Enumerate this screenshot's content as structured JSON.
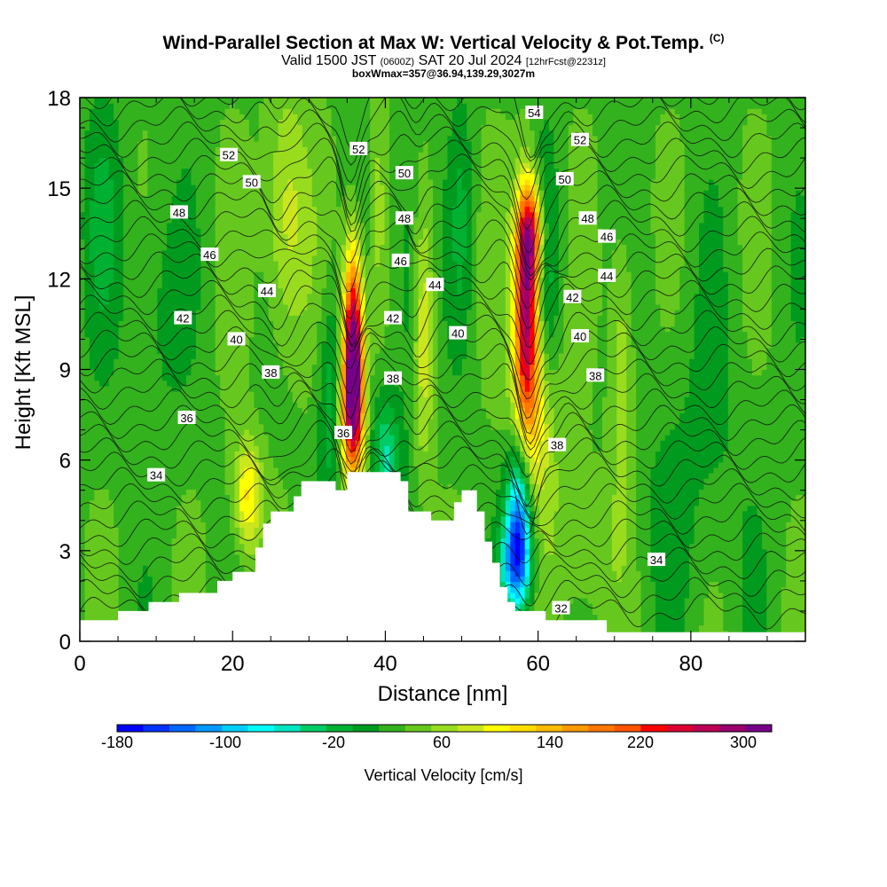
{
  "header": {
    "title": "Wind-Parallel Section at Max W: Vertical Velocity & Pot.Temp.",
    "copyright": "(C)",
    "valid_prefix": "Valid 1500 JST",
    "valid_utc": "(0600Z)",
    "valid_date": "SAT 20 Jul 2024",
    "forecast": "[12hrFcst@2231z]",
    "box_info": "boxWmax=357@36.94,139.29,3027m"
  },
  "chart_data": {
    "type": "heatmap",
    "xlabel": "Distance [nm]",
    "ylabel": "Height [Kft MSL]",
    "xlim": [
      0,
      95
    ],
    "ylim": [
      0,
      18
    ],
    "x_ticks": [
      "0",
      "20",
      "40",
      "60",
      "80"
    ],
    "y_ticks": [
      "0",
      "3",
      "6",
      "9",
      "12",
      "15",
      "18"
    ],
    "colorbar": {
      "title": "Vertical Velocity [cm/s]",
      "labels": [
        "-180",
        "-100",
        "-20",
        "60",
        "140",
        "220",
        "300"
      ],
      "colors": [
        "#0000ff",
        "#0033ff",
        "#0066ff",
        "#0099ff",
        "#00ccff",
        "#00ffff",
        "#00e6c0",
        "#00cc66",
        "#00b030",
        "#009b1e",
        "#33b21e",
        "#66c81e",
        "#99dc1e",
        "#cce61e",
        "#ffff00",
        "#ffdd00",
        "#ffbb00",
        "#ff9900",
        "#ff7700",
        "#ff5500",
        "#ff0000",
        "#dd0033",
        "#bb0055",
        "#99006e",
        "#770088"
      ]
    },
    "background_color": "#3cba1a",
    "terrain": [
      [
        0,
        0.7
      ],
      [
        2,
        0.7
      ],
      [
        4,
        0.7
      ],
      [
        5,
        1.0
      ],
      [
        8,
        1.0
      ],
      [
        9,
        1.3
      ],
      [
        12,
        1.3
      ],
      [
        13,
        1.6
      ],
      [
        17,
        1.6
      ],
      [
        18,
        2.0
      ],
      [
        19,
        2.0
      ],
      [
        20,
        2.3
      ],
      [
        22,
        2.3
      ],
      [
        23,
        3.1
      ],
      [
        24,
        3.9
      ],
      [
        25,
        4.3
      ],
      [
        27,
        4.3
      ],
      [
        28,
        4.8
      ],
      [
        29,
        5.3
      ],
      [
        33,
        5.3
      ],
      [
        33.5,
        5.0
      ],
      [
        34,
        5.0
      ],
      [
        35,
        5.6
      ],
      [
        41,
        5.6
      ],
      [
        42,
        5.3
      ],
      [
        43,
        4.3
      ],
      [
        45,
        4.3
      ],
      [
        46,
        4.0
      ],
      [
        48,
        4.0
      ],
      [
        49,
        4.6
      ],
      [
        50,
        5.0
      ],
      [
        51,
        5.0
      ],
      [
        52,
        4.3
      ],
      [
        53,
        3.3
      ],
      [
        54,
        2.6
      ],
      [
        55,
        1.8
      ],
      [
        56,
        1.3
      ],
      [
        57,
        1.0
      ],
      [
        60,
        1.0
      ],
      [
        61,
        0.7
      ],
      [
        68,
        0.7
      ],
      [
        69,
        0.3
      ],
      [
        95,
        0.3
      ]
    ],
    "velocity_features": [
      {
        "x": 35.8,
        "y": 9.5,
        "sx": 0.9,
        "sy": 2.3,
        "value": 300
      },
      {
        "x": 35.5,
        "y": 7.5,
        "sx": 1.3,
        "sy": 1.5,
        "value": 110
      },
      {
        "x": 58.5,
        "y": 11.0,
        "sx": 1.1,
        "sy": 2.6,
        "value": 230
      },
      {
        "x": 59.0,
        "y": 13.5,
        "sx": 1.2,
        "sy": 1.2,
        "value": 150
      },
      {
        "x": 59.5,
        "y": 7.5,
        "sx": 2.0,
        "sy": 2.5,
        "value": 80
      },
      {
        "x": 57.5,
        "y": 4.0,
        "sx": 1.2,
        "sy": 1.8,
        "value": -170
      },
      {
        "x": 57.0,
        "y": 2.5,
        "sx": 1.5,
        "sy": 1.0,
        "value": -90
      },
      {
        "x": 22.0,
        "y": 4.8,
        "sx": 1.3,
        "sy": 1.3,
        "value": 90
      },
      {
        "x": 33.0,
        "y": 8.0,
        "sx": 1.2,
        "sy": 2.5,
        "value": -60
      },
      {
        "x": 40.0,
        "y": 6.0,
        "sx": 1.3,
        "sy": 1.5,
        "value": -80
      },
      {
        "x": 43.0,
        "y": 12.0,
        "sx": 1.2,
        "sy": 3.5,
        "value": -40
      },
      {
        "x": 61.0,
        "y": 12.0,
        "sx": 1.2,
        "sy": 3.0,
        "value": -50
      },
      {
        "x": 27.0,
        "y": 14.0,
        "sx": 2.0,
        "sy": 3.0,
        "value": 60
      },
      {
        "x": 45.0,
        "y": 10.0,
        "sx": 1.0,
        "sy": 3.0,
        "value": 60
      },
      {
        "x": 71.0,
        "y": 9.0,
        "sx": 1.2,
        "sy": 3.5,
        "value": 50
      },
      {
        "x": 10.0,
        "y": 11.0,
        "sx": 2.5,
        "sy": 3.0,
        "value": -25
      },
      {
        "x": 3.0,
        "y": 14.0,
        "sx": 2.0,
        "sy": 3.0,
        "value": -30
      },
      {
        "x": 80.0,
        "y": 6.0,
        "sx": 6.0,
        "sy": 4.0,
        "value": -20
      },
      {
        "x": 66.0,
        "y": 3.0,
        "sx": 3.0,
        "sy": 2.0,
        "value": 30
      },
      {
        "x": 50.0,
        "y": 14.0,
        "sx": 1.0,
        "sy": 3.0,
        "value": -30
      },
      {
        "x": 39.0,
        "y": 14.0,
        "sx": 0.8,
        "sy": 3.0,
        "value": 40
      }
    ],
    "contour_labels": [
      {
        "text": "52",
        "x": 19.5,
        "y": 16.1
      },
      {
        "text": "50",
        "x": 22.5,
        "y": 15.2
      },
      {
        "text": "48",
        "x": 13.0,
        "y": 14.2
      },
      {
        "text": "46",
        "x": 17.0,
        "y": 12.8
      },
      {
        "text": "44",
        "x": 24.5,
        "y": 11.6
      },
      {
        "text": "42",
        "x": 13.5,
        "y": 10.7
      },
      {
        "text": "40",
        "x": 20.5,
        "y": 10.0
      },
      {
        "text": "38",
        "x": 25.0,
        "y": 8.9
      },
      {
        "text": "36",
        "x": 14.0,
        "y": 7.4
      },
      {
        "text": "34",
        "x": 10.0,
        "y": 5.5
      },
      {
        "text": "52",
        "x": 36.5,
        "y": 16.3
      },
      {
        "text": "50",
        "x": 42.5,
        "y": 15.5
      },
      {
        "text": "48",
        "x": 42.5,
        "y": 14.0
      },
      {
        "text": "46",
        "x": 42.0,
        "y": 12.6
      },
      {
        "text": "44",
        "x": 46.5,
        "y": 11.8
      },
      {
        "text": "42",
        "x": 41.0,
        "y": 10.7
      },
      {
        "text": "40",
        "x": 49.5,
        "y": 10.2
      },
      {
        "text": "38",
        "x": 41.0,
        "y": 8.7
      },
      {
        "text": "36",
        "x": 34.5,
        "y": 6.9
      },
      {
        "text": "54",
        "x": 59.5,
        "y": 17.5
      },
      {
        "text": "52",
        "x": 65.5,
        "y": 16.6
      },
      {
        "text": "50",
        "x": 63.5,
        "y": 15.3
      },
      {
        "text": "48",
        "x": 66.5,
        "y": 14.0
      },
      {
        "text": "46",
        "x": 69.0,
        "y": 13.4
      },
      {
        "text": "44",
        "x": 69.0,
        "y": 12.1
      },
      {
        "text": "42",
        "x": 64.5,
        "y": 11.4
      },
      {
        "text": "40",
        "x": 65.5,
        "y": 10.1
      },
      {
        "text": "38",
        "x": 67.5,
        "y": 8.8
      },
      {
        "text": "38",
        "x": 62.5,
        "y": 6.5
      },
      {
        "text": "34",
        "x": 75.5,
        "y": 2.7
      },
      {
        "text": "32",
        "x": 63.0,
        "y": 1.1
      }
    ]
  }
}
